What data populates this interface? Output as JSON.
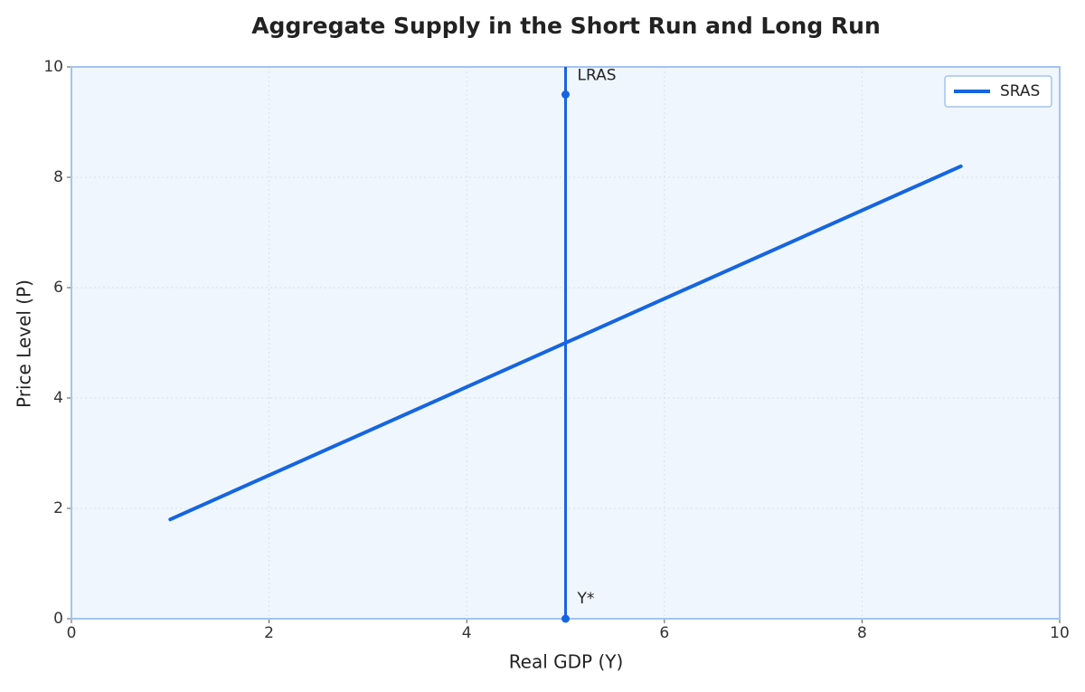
{
  "chart_data": {
    "type": "line",
    "title": "Aggregate Supply in the Short Run and Long Run",
    "x_label": "Real GDP (Y)",
    "y_label": "Price Level (P)",
    "xlim": [
      0,
      10
    ],
    "ylim": [
      0,
      10
    ],
    "xticks": [
      0,
      2,
      4,
      6,
      8,
      10
    ],
    "yticks": [
      0,
      2,
      4,
      6,
      8,
      10
    ],
    "grid": true,
    "legend": "upper right",
    "series": [
      {
        "name": "SRAS",
        "color": "#1565e0",
        "x": [
          1,
          9
        ],
        "values": [
          1.8,
          8.2
        ]
      }
    ],
    "lras": {
      "x": 5,
      "points": [
        9.5,
        0
      ],
      "labels": [
        "LRAS",
        "Y*"
      ],
      "color": "#1565e0"
    }
  }
}
